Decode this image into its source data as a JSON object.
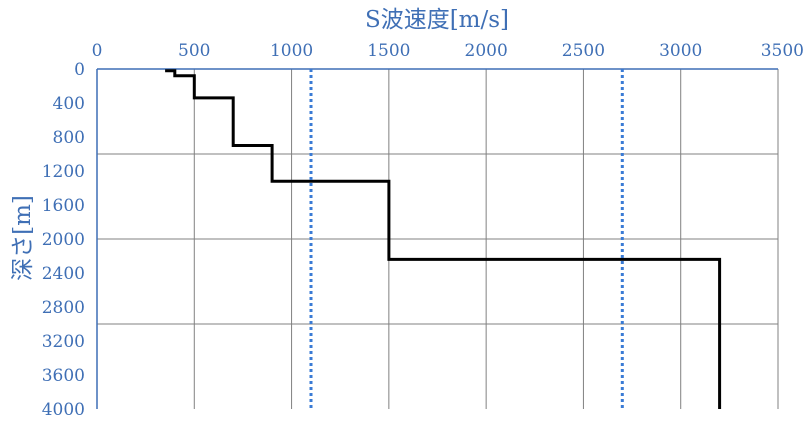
{
  "chart_data": {
    "type": "line",
    "title": "",
    "xlabel": "S波速度[m/s]",
    "ylabel": "深さ[m]",
    "x_axis_position": "top",
    "y_axis_inverted": true,
    "xlim": [
      0,
      3500
    ],
    "ylim": [
      0,
      4000
    ],
    "x_ticks": [
      "0",
      "500",
      "1000",
      "1500",
      "2000",
      "2500",
      "3000",
      "3500"
    ],
    "y_ticks": [
      "0",
      "400",
      "800",
      "1200",
      "1600",
      "2000",
      "2400",
      "2800",
      "3200",
      "3600",
      "4000"
    ],
    "x_gridlines": [
      500,
      1000,
      1500,
      2000,
      2500,
      3000,
      3500
    ],
    "y_gridlines": [
      1000,
      2000,
      3000
    ],
    "series": [
      {
        "style": "solid",
        "color": "#000000",
        "x": [
          350,
          400,
          400,
          500,
          500,
          700,
          700,
          900,
          900,
          1500,
          1500,
          3200,
          3200
        ],
        "y": [
          20,
          20,
          80,
          80,
          340,
          340,
          900,
          900,
          1320,
          1320,
          2240,
          2240,
          4000
        ]
      },
      {
        "style": "dotted",
        "color": "#3a7bd5",
        "x": [
          1100,
          1100
        ],
        "y": [
          0,
          4000
        ]
      },
      {
        "style": "dotted",
        "color": "#3a7bd5",
        "x": [
          2700,
          2700
        ],
        "y": [
          0,
          4000
        ]
      }
    ]
  }
}
